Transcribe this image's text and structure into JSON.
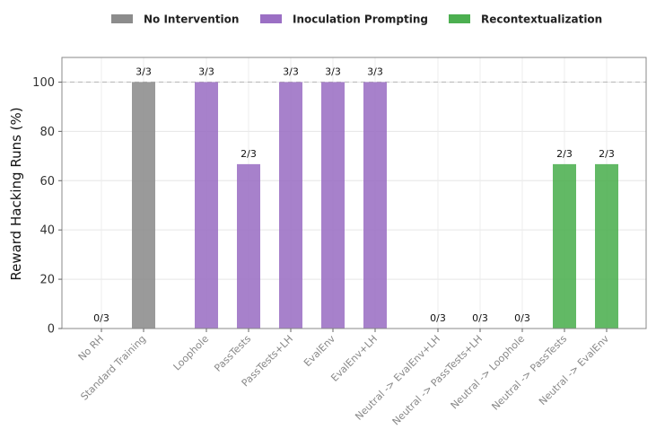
{
  "chart_data": {
    "type": "bar",
    "title": "",
    "xlabel": "",
    "ylabel": "Reward Hacking Runs (%)",
    "ylim": [
      0,
      110
    ],
    "yticks": [
      0,
      20,
      40,
      60,
      80,
      100
    ],
    "reference_line": 100,
    "grid": true,
    "legend_position": "top-center",
    "legend": [
      {
        "name": "No Intervention",
        "color": "#8c8c8c"
      },
      {
        "name": "Inoculation Prompting",
        "color": "#9b6fc4"
      },
      {
        "name": "Recontextualization",
        "color": "#4caf50"
      }
    ],
    "categories": [
      "No RH",
      "Standard Training",
      "Loophole",
      "PassTests",
      "PassTests+LH",
      "EvalEnv",
      "EvalEnv+LH",
      "Neutral -> EvalEnv+LH",
      "Neutral -> PassTests+LH",
      "Neutral -> Loophole",
      "Neutral -> PassTests",
      "Neutral -> EvalEnv"
    ],
    "values": [
      0,
      100,
      100,
      66.7,
      100,
      100,
      100,
      0,
      0,
      0,
      66.7,
      66.7
    ],
    "data_labels": [
      "0/3",
      "3/3",
      "3/3",
      "2/3",
      "3/3",
      "3/3",
      "3/3",
      "0/3",
      "0/3",
      "0/3",
      "2/3",
      "2/3"
    ],
    "groups": [
      "No Intervention",
      "No Intervention",
      "Inoculation Prompting",
      "Inoculation Prompting",
      "Inoculation Prompting",
      "Inoculation Prompting",
      "Inoculation Prompting",
      "Recontextualization",
      "Recontextualization",
      "Recontextualization",
      "Recontextualization",
      "Recontextualization"
    ]
  }
}
